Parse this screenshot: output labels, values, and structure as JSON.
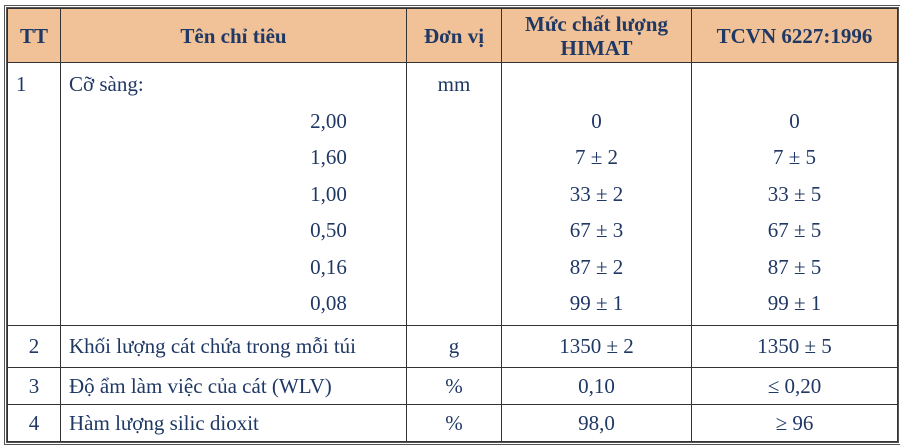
{
  "headers": {
    "tt": "TT",
    "name": "Tên chỉ tiêu",
    "unit": "Đơn vị",
    "himat_line1": "Mức chất lượng",
    "himat_line2": "HIMAT",
    "tcvn": "TCVN 6227:1996"
  },
  "row1": {
    "tt": "1",
    "name": "Cỡ sàng:",
    "unit": "mm",
    "sizes": [
      {
        "size": "2,00",
        "himat": "0",
        "tcvn": "0"
      },
      {
        "size": "1,60",
        "himat": "7 ± 2",
        "tcvn": "7 ± 5"
      },
      {
        "size": "1,00",
        "himat": "33 ± 2",
        "tcvn": "33 ± 5"
      },
      {
        "size": "0,50",
        "himat": "67 ± 3",
        "tcvn": "67 ± 5"
      },
      {
        "size": "0,16",
        "himat": "87 ± 2",
        "tcvn": "87 ± 5"
      },
      {
        "size": "0,08",
        "himat": "99 ± 1",
        "tcvn": "99 ± 1"
      }
    ]
  },
  "rows": [
    {
      "tt": "2",
      "name": "Khối lượng cát chứa trong mỗi túi",
      "unit": "g",
      "himat": "1350 ± 2",
      "tcvn": "1350 ± 5"
    },
    {
      "tt": "3",
      "name": "Độ ẩm làm việc của cát (WLV)",
      "unit": "%",
      "himat": "0,10",
      "tcvn": "≤ 0,20"
    },
    {
      "tt": "4",
      "name": "Hàm lượng silic dioxit",
      "unit": "%",
      "himat": "98,0",
      "tcvn": "≥ 96"
    }
  ],
  "colors": {
    "header_bg": "#f1c197",
    "text": "#1f3864"
  }
}
